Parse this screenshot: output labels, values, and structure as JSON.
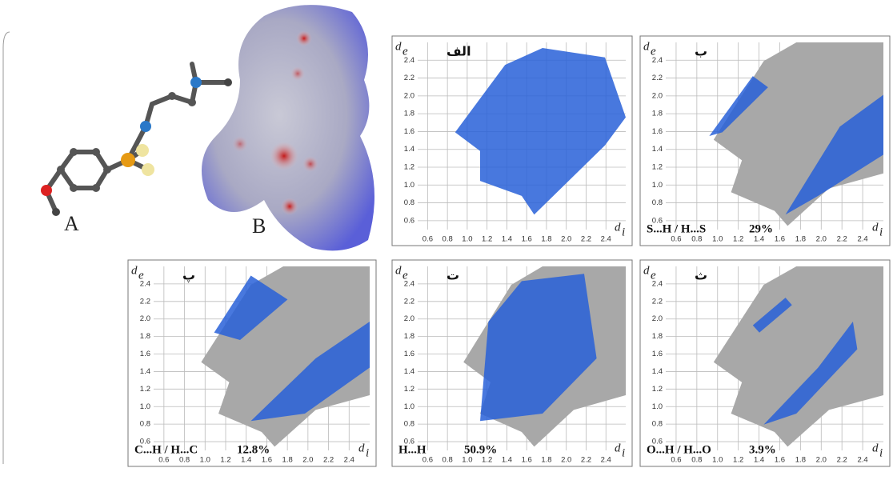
{
  "molecule": {
    "label": "A"
  },
  "surface": {
    "label": "B"
  },
  "axes": {
    "y_label": "d",
    "y_sub": "e",
    "x_label": "d",
    "x_sub": "i",
    "yticks": [
      "0.6",
      "0.8",
      "1.0",
      "1.2",
      "1.4",
      "1.6",
      "1.8",
      "2.0",
      "2.2",
      "2.4"
    ],
    "xticks": [
      "0.6",
      "0.8",
      "1.0",
      "1.2",
      "1.4",
      "1.6",
      "1.8",
      "2.0",
      "2.2",
      "2.4"
    ]
  },
  "plots": [
    {
      "tag": "الف"
    },
    {
      "tag": "ب",
      "contact": "S...H / H...S",
      "percent": "29%"
    },
    {
      "tag": "پ",
      "contact": "C...H / H...C",
      "percent": "12.8%"
    },
    {
      "tag": "ت",
      "contact": "H...H",
      "percent": "50.9%"
    },
    {
      "tag": "ث",
      "contact": "O...H / H...O",
      "percent": "3.9%"
    }
  ]
}
